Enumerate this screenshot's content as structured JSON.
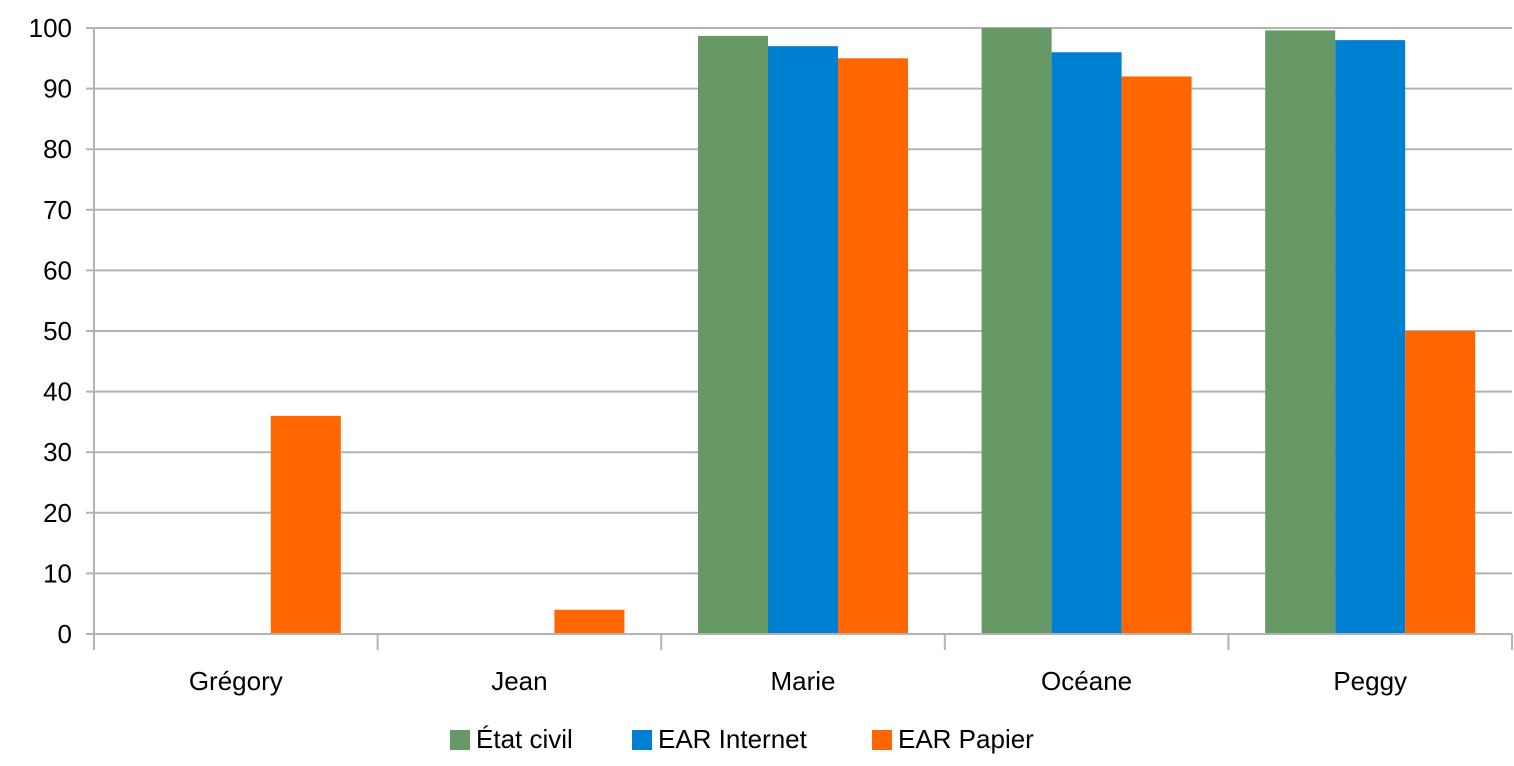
{
  "chart_data": {
    "type": "bar",
    "categories": [
      "Grégory",
      "Jean",
      "Marie",
      "Océane",
      "Peggy"
    ],
    "series": [
      {
        "name": "État civil",
        "color": "#669966",
        "values": [
          0,
          0,
          98.7,
          100,
          99.6
        ]
      },
      {
        "name": "EAR Internet",
        "color": "#0080d0",
        "values": [
          0,
          0,
          97,
          96,
          98
        ]
      },
      {
        "name": "EAR Papier",
        "color": "#ff6600",
        "values": [
          36,
          4,
          95,
          92,
          50
        ]
      }
    ],
    "y_ticks": [
      "0",
      "10",
      "20",
      "30",
      "40",
      "50",
      "60",
      "70",
      "80",
      "90",
      "100"
    ],
    "ylim": [
      0,
      100
    ],
    "grid": true,
    "legend_position": "bottom-center",
    "title": "",
    "xlabel": "",
    "ylabel": ""
  }
}
